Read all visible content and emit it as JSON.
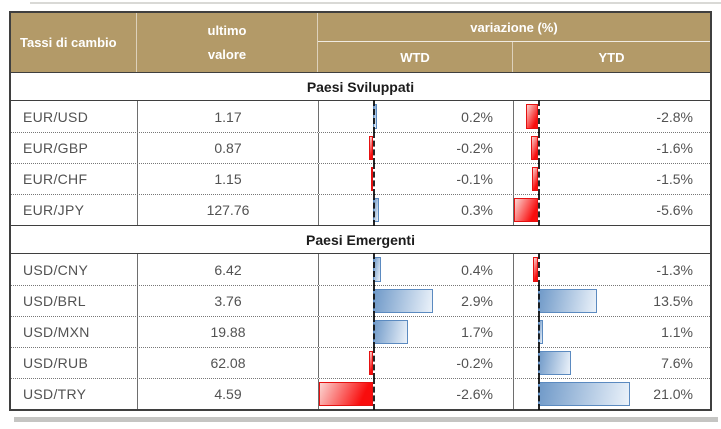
{
  "header": {
    "row_label": "Tassi di cambio",
    "ultimo_line1": "ultimo",
    "ultimo_line2": "valore",
    "variazione": "variazione (%)",
    "wtd": "WTD",
    "ytd": "YTD"
  },
  "sections": [
    {
      "title": "Paesi Sviluppati",
      "rows": [
        {
          "pair": "EUR/USD",
          "ultimo": "1.17",
          "wtd": 0.2,
          "wtd_label": "0.2%",
          "ytd": -2.8,
          "ytd_label": "-2.8%"
        },
        {
          "pair": "EUR/GBP",
          "ultimo": "0.87",
          "wtd": -0.2,
          "wtd_label": "-0.2%",
          "ytd": -1.6,
          "ytd_label": "-1.6%"
        },
        {
          "pair": "EUR/CHF",
          "ultimo": "1.15",
          "wtd": -0.1,
          "wtd_label": "-0.1%",
          "ytd": -1.5,
          "ytd_label": "-1.5%"
        },
        {
          "pair": "EUR/JPY",
          "ultimo": "127.76",
          "wtd": 0.3,
          "wtd_label": "0.3%",
          "ytd": -5.6,
          "ytd_label": "-5.6%"
        }
      ]
    },
    {
      "title": "Paesi Emergenti",
      "rows": [
        {
          "pair": "USD/CNY",
          "ultimo": "6.42",
          "wtd": 0.4,
          "wtd_label": "0.4%",
          "ytd": -1.3,
          "ytd_label": "-1.3%"
        },
        {
          "pair": "USD/BRL",
          "ultimo": "3.76",
          "wtd": 2.9,
          "wtd_label": "2.9%",
          "ytd": 13.5,
          "ytd_label": "13.5%"
        },
        {
          "pair": "USD/MXN",
          "ultimo": "19.88",
          "wtd": 1.7,
          "wtd_label": "1.7%",
          "ytd": 1.1,
          "ytd_label": "1.1%"
        },
        {
          "pair": "USD/RUB",
          "ultimo": "62.08",
          "wtd": -0.2,
          "wtd_label": "-0.2%",
          "ytd": 7.6,
          "ytd_label": "7.6%"
        },
        {
          "pair": "USD/TRY",
          "ultimo": "4.59",
          "wtd": -2.6,
          "wtd_label": "-2.6%",
          "ytd": 21.0,
          "ytd_label": "21.0%"
        }
      ]
    }
  ],
  "chart_data": {
    "type": "bar",
    "title": "Tassi di cambio — ultimo valore e variazione (%)",
    "categories": [
      "EUR/USD",
      "EUR/GBP",
      "EUR/CHF",
      "EUR/JPY",
      "USD/CNY",
      "USD/BRL",
      "USD/MXN",
      "USD/RUB",
      "USD/TRY"
    ],
    "groups": {
      "Paesi Sviluppati": [
        "EUR/USD",
        "EUR/GBP",
        "EUR/CHF",
        "EUR/JPY"
      ],
      "Paesi Emergenti": [
        "USD/CNY",
        "USD/BRL",
        "USD/MXN",
        "USD/RUB",
        "USD/TRY"
      ]
    },
    "ultimo_valore": [
      1.17,
      0.87,
      1.15,
      127.76,
      6.42,
      3.76,
      19.88,
      62.08,
      4.59
    ],
    "series": [
      {
        "name": "WTD",
        "values": [
          0.2,
          -0.2,
          -0.1,
          0.3,
          0.4,
          2.9,
          1.7,
          -0.2,
          -2.6
        ]
      },
      {
        "name": "YTD",
        "values": [
          -2.8,
          -1.6,
          -1.5,
          -5.6,
          -1.3,
          13.5,
          1.1,
          7.6,
          21.0
        ]
      }
    ],
    "wtd_axis_range": [
      -2.6,
      2.9
    ],
    "ytd_axis_range": [
      -5.6,
      21.0
    ],
    "orientation": "horizontal-bars-in-table",
    "positive_bar_style": "blue gradient, dark blue border",
    "negative_bar_style": "red gradient, red border",
    "baseline_style": "black dashed vertical line"
  },
  "colors": {
    "header_bg": "#b39a68",
    "header_text": "#ffffff",
    "body_text": "#525252",
    "positive_bar": "#6f99c8",
    "positive_bar_border": "#5b8ac0",
    "negative_bar": "#f90d0d",
    "negative_bar_border": "#e51111",
    "outer_border": "#3f3f3f"
  }
}
